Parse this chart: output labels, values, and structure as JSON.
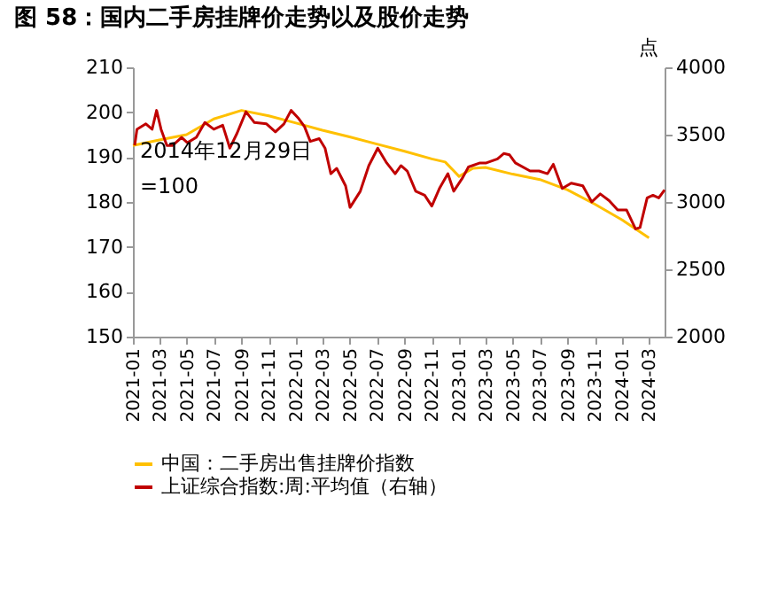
{
  "chart_data": {
    "type": "line",
    "title": "图 58：国内二手房挂牌价走势以及股价走势",
    "series": [
      {
        "name": "中国：二手房出售挂牌价指数",
        "color": "#ffc000",
        "x": [
          "2021-01",
          "2021-03",
          "2021-05",
          "2021-07",
          "2021-09",
          "2021-11",
          "2022-01",
          "2022-03",
          "2022-05",
          "2022-07",
          "2022-09",
          "2022-11",
          "2022-12",
          "2023-01",
          "2023-02",
          "2023-03",
          "2023-05",
          "2023-07",
          "2023-09",
          "2023-11",
          "2024-01",
          "2024-03"
        ],
        "values": [
          192.6,
          193.8,
          195,
          198.5,
          200.4,
          199.2,
          197.6,
          196,
          194.5,
          192.9,
          191.3,
          189.6,
          188.9,
          185.7,
          187.5,
          187.7,
          186.2,
          185,
          182.7,
          179.5,
          176,
          172
        ]
      },
      {
        "name": "上证综合指数:周:平均值（右轴）",
        "color": "#c00000",
        "axis": "y2",
        "x": [
          "2021-01-05",
          "2021-01-10",
          "2021-01-30",
          "2021-02-13",
          "2021-02-23",
          "2021-03-05",
          "2021-03-18",
          "2021-03-31",
          "2021-04-20",
          "2021-05-03",
          "2021-05-23",
          "2021-06-11",
          "2021-07-01",
          "2021-07-21",
          "2021-08-06",
          "2021-08-22",
          "2021-09-11",
          "2021-09-30",
          "2021-10-27",
          "2021-11-16",
          "2021-12-05",
          "2021-12-21",
          "2022-01-07",
          "2022-01-20",
          "2022-02-02",
          "2022-02-22",
          "2022-03-07",
          "2022-03-20",
          "2022-04-02",
          "2022-04-22",
          "2022-05-02",
          "2022-05-25",
          "2022-06-13",
          "2022-07-03",
          "2022-07-23",
          "2022-08-11",
          "2022-08-24",
          "2022-09-07",
          "2022-09-26",
          "2022-10-16",
          "2022-11-01",
          "2022-11-18",
          "2022-12-07",
          "2022-12-20",
          "2023-01-09",
          "2023-01-22",
          "2023-02-17",
          "2023-03-03",
          "2023-03-28",
          "2023-04-11",
          "2023-04-24",
          "2023-05-07",
          "2023-06-09",
          "2023-06-29",
          "2023-07-18",
          "2023-07-31",
          "2023-08-20",
          "2023-09-09",
          "2023-10-05",
          "2023-10-25",
          "2023-11-13",
          "2023-12-03",
          "2023-12-22",
          "2024-01-11",
          "2024-01-31",
          "2024-02-10",
          "2024-02-26",
          "2024-03-10",
          "2024-03-23",
          "2024-04-05"
        ],
        "values": [
          3420,
          3540,
          3580,
          3540,
          3680,
          3540,
          3420,
          3420,
          3480,
          3440,
          3480,
          3590,
          3540,
          3570,
          3400,
          3510,
          3670,
          3590,
          3580,
          3520,
          3580,
          3680,
          3620,
          3560,
          3450,
          3470,
          3400,
          3210,
          3250,
          3120,
          2960,
          3080,
          3270,
          3400,
          3290,
          3210,
          3270,
          3230,
          3080,
          3050,
          2970,
          3100,
          3210,
          3080,
          3180,
          3260,
          3290,
          3290,
          3320,
          3360,
          3350,
          3290,
          3230,
          3230,
          3210,
          3280,
          3100,
          3140,
          3120,
          3000,
          3060,
          3010,
          2940,
          2940,
          2800,
          2810,
          3030,
          3050,
          3030,
          3090
        ]
      }
    ],
    "xlim": [
      "2021-01-01",
      "2024-04-05"
    ],
    "xticks": [
      "2021-01",
      "2021-03",
      "2021-05",
      "2021-07",
      "2021-09",
      "2021-11",
      "2022-01",
      "2022-03",
      "2022-05",
      "2022-07",
      "2022-09",
      "2022-11",
      "2023-01",
      "2023-03",
      "2023-05",
      "2023-07",
      "2023-09",
      "2023-11",
      "2024-01",
      "2024-03"
    ],
    "ylim": [
      150,
      210
    ],
    "yticks": [
      150,
      160,
      170,
      180,
      190,
      200,
      210
    ],
    "y2lim": [
      2000,
      4000
    ],
    "y2ticks": [
      2000,
      2500,
      3000,
      3500,
      4000
    ],
    "y2label": "点",
    "annotations": [
      "2014年12月29日\n=100"
    ],
    "legend": "bottom",
    "grid": false
  }
}
